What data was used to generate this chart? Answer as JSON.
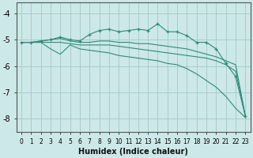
{
  "background_color": "#cce8e8",
  "grid_color": "#aacccc",
  "line_color": "#2e8b7a",
  "xlabel": "Humidex (Indice chaleur)",
  "xlim": [
    -0.5,
    23.5
  ],
  "ylim": [
    -8.5,
    -3.6
  ],
  "xticks": [
    0,
    1,
    2,
    3,
    4,
    5,
    6,
    7,
    8,
    9,
    10,
    11,
    12,
    13,
    14,
    15,
    16,
    17,
    18,
    19,
    20,
    21,
    22,
    23
  ],
  "yticks": [
    -8,
    -7,
    -6,
    -5,
    -4
  ],
  "series": [
    {
      "x": [
        0,
        1,
        2,
        3,
        4,
        5,
        6,
        7,
        8,
        9,
        10,
        11,
        12,
        13,
        14,
        15,
        16,
        17,
        18,
        19,
        20,
        21,
        22,
        23
      ],
      "y": [
        -5.1,
        -5.1,
        -5.05,
        -5.0,
        -4.9,
        -5.0,
        -5.05,
        -4.8,
        -4.65,
        -4.6,
        -4.7,
        -4.65,
        -4.6,
        -4.65,
        -4.4,
        -4.7,
        -4.7,
        -4.85,
        -5.1,
        -5.1,
        -5.35,
        -5.9,
        -6.4,
        -7.9
      ],
      "marker": true
    },
    {
      "x": [
        0,
        1,
        2,
        3,
        4,
        5,
        6,
        7,
        8,
        9,
        10,
        11,
        12,
        13,
        14,
        15,
        16,
        17,
        18,
        19,
        20,
        21,
        22,
        23
      ],
      "y": [
        -5.1,
        -5.1,
        -5.05,
        -5.0,
        -4.95,
        -5.05,
        -5.1,
        -5.1,
        -5.05,
        -5.05,
        -5.1,
        -5.1,
        -5.15,
        -5.15,
        -5.2,
        -5.25,
        -5.3,
        -5.35,
        -5.45,
        -5.55,
        -5.65,
        -5.8,
        -5.95,
        -7.9
      ],
      "marker": false
    },
    {
      "x": [
        0,
        1,
        2,
        3,
        4,
        5,
        6,
        7,
        8,
        9,
        10,
        11,
        12,
        13,
        14,
        15,
        16,
        17,
        18,
        19,
        20,
        21,
        22,
        23
      ],
      "y": [
        -5.1,
        -5.1,
        -5.1,
        -5.1,
        -5.1,
        -5.15,
        -5.2,
        -5.2,
        -5.2,
        -5.2,
        -5.25,
        -5.3,
        -5.35,
        -5.4,
        -5.45,
        -5.5,
        -5.55,
        -5.6,
        -5.65,
        -5.7,
        -5.8,
        -5.95,
        -6.2,
        -7.9
      ],
      "marker": false
    },
    {
      "x": [
        0,
        1,
        2,
        3,
        4,
        5,
        6,
        7,
        8,
        9,
        10,
        11,
        12,
        13,
        14,
        15,
        16,
        17,
        18,
        19,
        20,
        21,
        22,
        23
      ],
      "y": [
        -5.1,
        -5.1,
        -5.1,
        -5.35,
        -5.55,
        -5.2,
        -5.35,
        -5.4,
        -5.45,
        -5.5,
        -5.6,
        -5.65,
        -5.7,
        -5.75,
        -5.8,
        -5.9,
        -5.95,
        -6.1,
        -6.3,
        -6.55,
        -6.8,
        -7.15,
        -7.6,
        -7.95
      ],
      "marker": false
    }
  ]
}
